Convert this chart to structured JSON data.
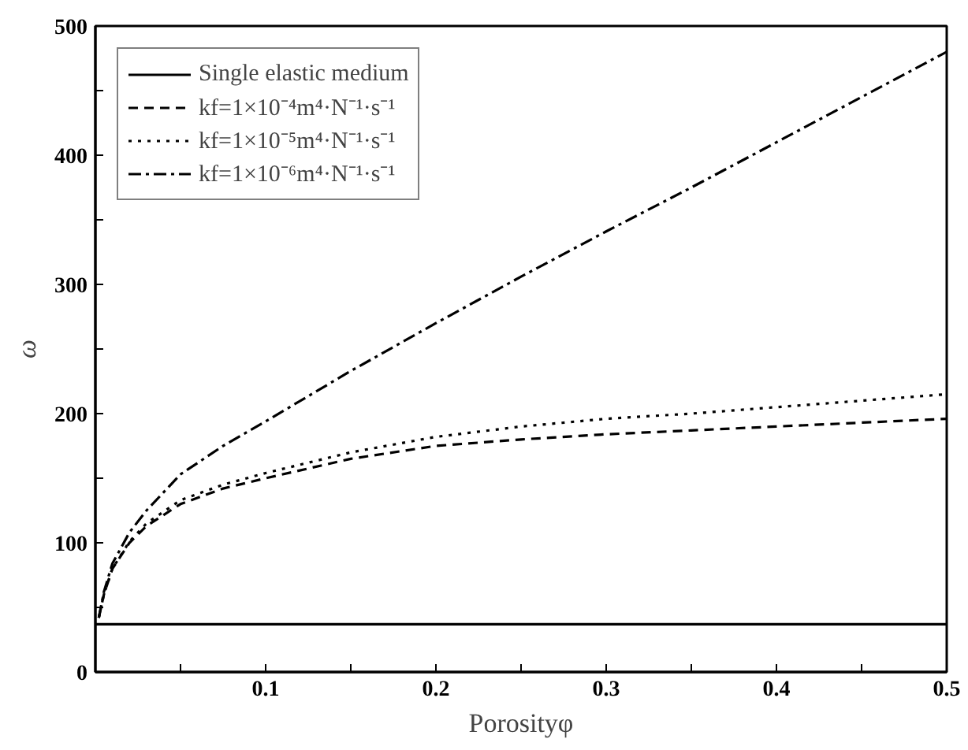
{
  "chart_data": {
    "type": "line",
    "xlabel": "Porosityφ",
    "ylabel": "ω",
    "xlim": [
      0,
      0.5
    ],
    "ylim": [
      0,
      500
    ],
    "xticks": [
      {
        "value": 0.05,
        "label": null
      },
      0.1,
      {
        "value": 0.15,
        "label": null
      },
      0.2,
      {
        "value": 0.25,
        "label": null
      },
      0.3,
      {
        "value": 0.35,
        "label": null
      },
      0.4,
      {
        "value": 0.45,
        "label": null
      },
      0.5
    ],
    "yticks": [
      0,
      {
        "value": 50,
        "label": null
      },
      100,
      {
        "value": 150,
        "label": null
      },
      200,
      {
        "value": 250,
        "label": null
      },
      300,
      {
        "value": 350,
        "label": null
      },
      400,
      {
        "value": 450,
        "label": null
      },
      500
    ],
    "grid": false,
    "legend": "top left",
    "marker": "none",
    "series": [
      {
        "name": "Single elastic medium",
        "color": "#000000",
        "line_style": "solid",
        "x": [
          0,
          0.5
        ],
        "values": [
          37,
          37
        ]
      },
      {
        "name": "kf=1×10⁻⁴m⁴·N⁻¹·s⁻¹",
        "color": "#000000",
        "line_style": "dashed",
        "x": [
          0.002,
          0.005,
          0.01,
          0.02,
          0.03,
          0.05,
          0.075,
          0.1,
          0.15,
          0.2,
          0.25,
          0.3,
          0.35,
          0.4,
          0.45,
          0.5
        ],
        "values": [
          42,
          60,
          80,
          100,
          113,
          130,
          142,
          150,
          165,
          175,
          180,
          184,
          187,
          190,
          193,
          196
        ]
      },
      {
        "name": "kf=1×10⁻⁵m⁴·N⁻¹·s⁻¹",
        "color": "#000000",
        "line_style": "dotted",
        "x": [
          0.002,
          0.005,
          0.01,
          0.02,
          0.03,
          0.05,
          0.075,
          0.1,
          0.15,
          0.2,
          0.25,
          0.3,
          0.35,
          0.4,
          0.45,
          0.5
        ],
        "values": [
          42,
          60,
          80,
          101,
          115,
          133,
          145,
          154,
          170,
          182,
          190,
          196,
          200,
          205,
          210,
          215
        ]
      },
      {
        "name": "kf=1×10⁻⁶m⁴·N⁻¹·s⁻¹",
        "color": "#000000",
        "line_style": "dashdot",
        "x": [
          0.002,
          0.005,
          0.01,
          0.02,
          0.03,
          0.05,
          0.075,
          0.1,
          0.15,
          0.2,
          0.25,
          0.3,
          0.35,
          0.4,
          0.45,
          0.5
        ],
        "values": [
          42,
          62,
          84,
          108,
          125,
          153,
          175,
          194,
          233,
          270,
          306,
          341,
          375,
          410,
          445,
          480
        ]
      }
    ]
  }
}
